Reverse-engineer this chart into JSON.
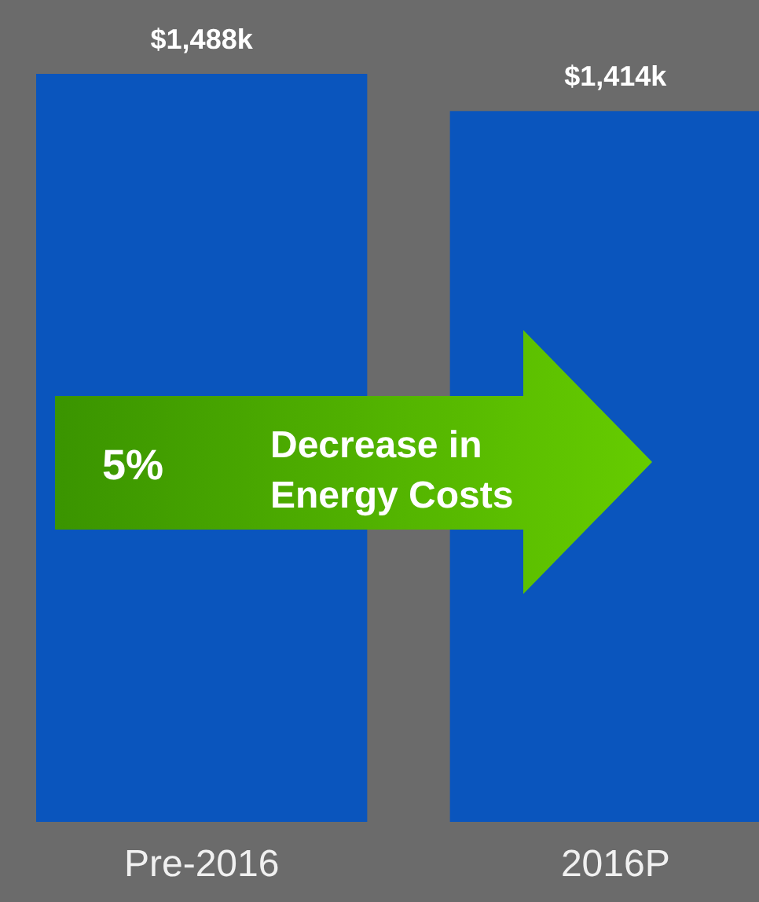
{
  "chart_data": {
    "type": "bar",
    "categories": [
      "Pre-2016",
      "2016P"
    ],
    "values": [
      1488,
      1414
    ],
    "value_labels": [
      "$1,488k",
      "$1,414k"
    ],
    "color": "#0a55bd",
    "annotations": [
      "5%",
      "Decrease in Energy Costs"
    ]
  }
}
